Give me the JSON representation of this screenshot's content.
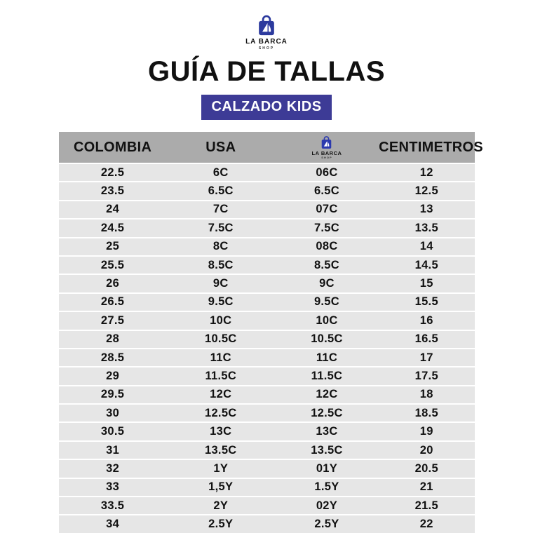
{
  "logo": {
    "name": "LA BARCA",
    "sub": "SHOP"
  },
  "title": "GUÍA DE TALLAS",
  "badge": {
    "label": "CALZADO KIDS"
  },
  "colors": {
    "accent": "#3d3b96",
    "logo-blue": "#2c3a9e",
    "header-bg": "#ababab",
    "row-bg": "#e6e6e6",
    "text": "#111111"
  },
  "table": {
    "headers": {
      "col1": "COLOMBIA",
      "col2": "USA",
      "col3_logo_name": "LA BARCA",
      "col3_logo_sub": "SHOP",
      "col4": "CENTIMETROS"
    },
    "rows": [
      [
        "22.5",
        "6C",
        "06C",
        "12"
      ],
      [
        "23.5",
        "6.5C",
        "6.5C",
        "12.5"
      ],
      [
        "24",
        "7C",
        "07C",
        "13"
      ],
      [
        "24.5",
        "7.5C",
        "7.5C",
        "13.5"
      ],
      [
        "25",
        "8C",
        "08C",
        "14"
      ],
      [
        "25.5",
        "8.5C",
        "8.5C",
        "14.5"
      ],
      [
        "26",
        "9C",
        "9C",
        "15"
      ],
      [
        "26.5",
        "9.5C",
        "9.5C",
        "15.5"
      ],
      [
        "27.5",
        "10C",
        "10C",
        "16"
      ],
      [
        "28",
        "10.5C",
        "10.5C",
        "16.5"
      ],
      [
        "28.5",
        "11C",
        "11C",
        "17"
      ],
      [
        "29",
        "11.5C",
        "11.5C",
        "17.5"
      ],
      [
        "29.5",
        "12C",
        "12C",
        "18"
      ],
      [
        "30",
        "12.5C",
        "12.5C",
        "18.5"
      ],
      [
        "30.5",
        "13C",
        "13C",
        "19"
      ],
      [
        "31",
        "13.5C",
        "13.5C",
        "20"
      ],
      [
        "32",
        "1Y",
        "01Y",
        "20.5"
      ],
      [
        "33",
        "1,5Y",
        "1.5Y",
        "21"
      ],
      [
        "33.5",
        "2Y",
        "02Y",
        "21.5"
      ],
      [
        "34",
        "2.5Y",
        "2.5Y",
        "22"
      ]
    ]
  }
}
